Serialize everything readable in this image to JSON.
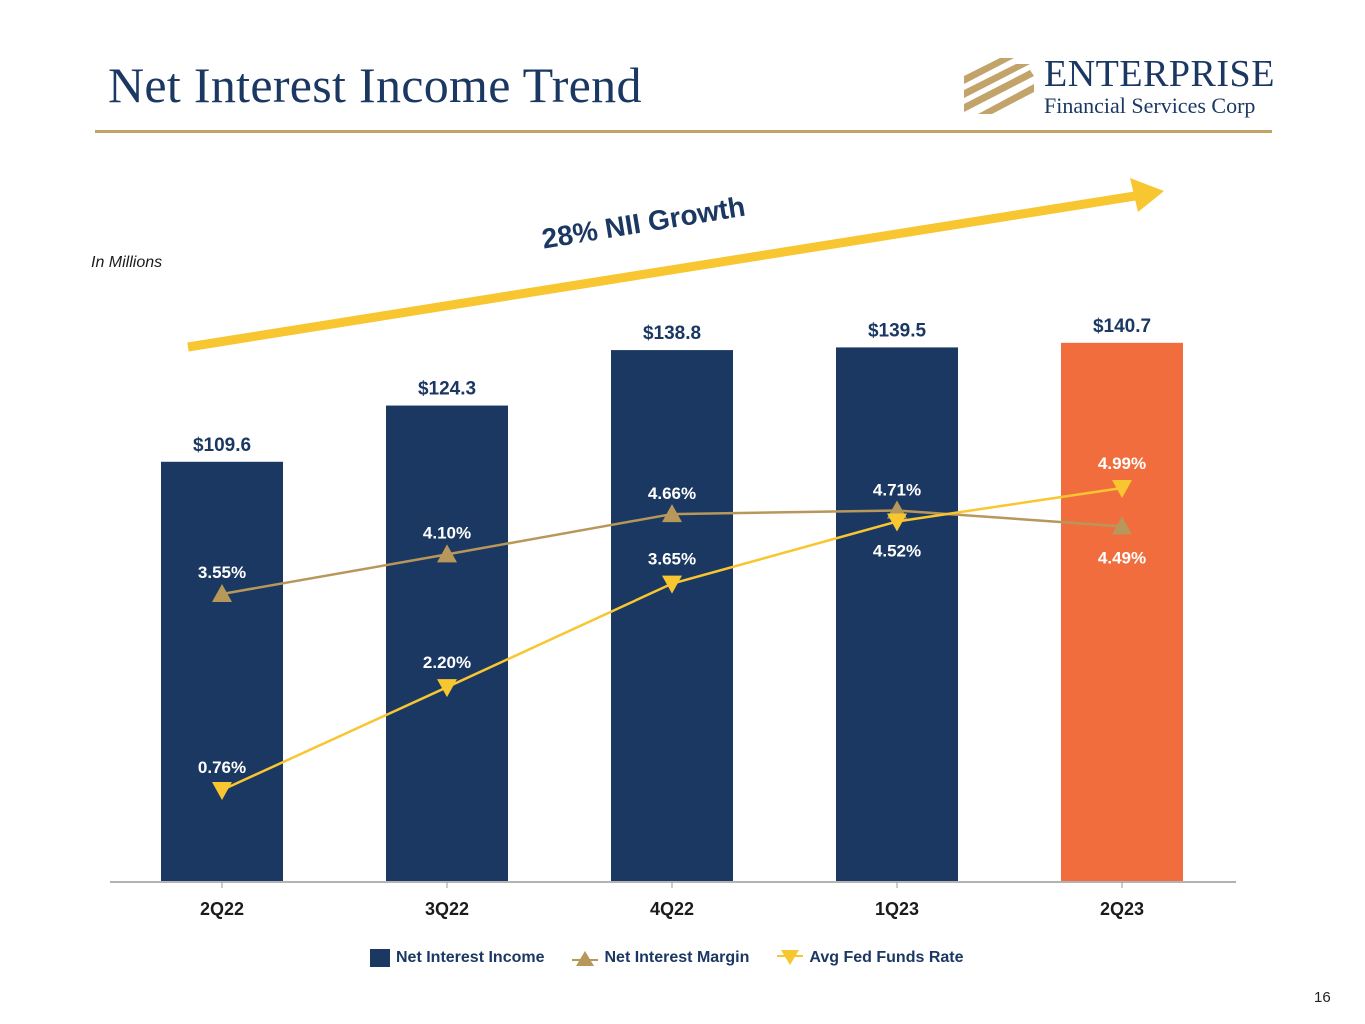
{
  "title": "Net Interest Income Trend",
  "logo": {
    "name": "ENTERPRISE",
    "subtitle": "Financial Services Corp"
  },
  "unit_note": "In Millions",
  "page_number": "16",
  "colors": {
    "navy": "#1b3862",
    "orange": "#f26d3d",
    "gold_line": "#b8975a",
    "yellow_line": "#f7c630",
    "arrow": "#f7c630"
  },
  "chart_data": {
    "type": "bar",
    "title": "Net Interest Income Trend",
    "xlabel": "",
    "ylabel": "",
    "categories": [
      "2Q22",
      "3Q22",
      "4Q22",
      "1Q23",
      "2Q23"
    ],
    "growth_label": "28% NII Growth",
    "series": [
      {
        "name": "Net Interest Income",
        "kind": "bar",
        "values": [
          109.6,
          124.3,
          138.8,
          139.5,
          140.7
        ],
        "labels": [
          "$109.6",
          "$124.3",
          "$138.8",
          "$139.5",
          "$140.7"
        ],
        "highlight_last": true
      },
      {
        "name": "Net Interest Margin",
        "kind": "line",
        "marker": "triangle-up",
        "values": [
          3.55,
          4.1,
          4.66,
          4.71,
          4.49
        ],
        "labels": [
          "3.55%",
          "4.10%",
          "4.66%",
          "4.71%",
          "4.49%"
        ]
      },
      {
        "name": "Avg Fed Funds Rate",
        "kind": "line",
        "marker": "triangle-down",
        "values": [
          0.76,
          2.2,
          3.65,
          4.52,
          4.99
        ],
        "labels": [
          "0.76%",
          "2.20%",
          "3.65%",
          "4.52%",
          "4.99%"
        ]
      }
    ],
    "legend": [
      "Net Interest Income",
      "Net Interest Margin",
      "Avg Fed Funds Rate"
    ],
    "legend_position": "bottom"
  }
}
